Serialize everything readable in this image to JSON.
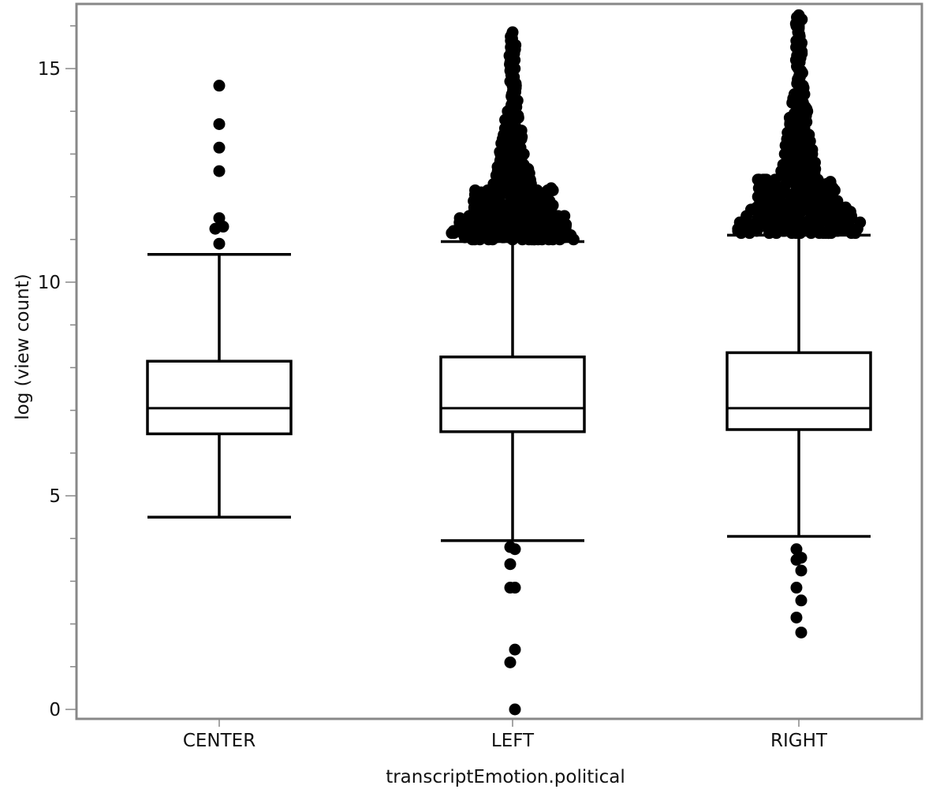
{
  "chart_data": {
    "type": "boxplot",
    "xlabel": "transcriptEmotion.political",
    "ylabel": "log (view count)",
    "ylim": [
      -0.2,
      16.3
    ],
    "yticks_labeled": [
      0,
      5,
      10,
      15
    ],
    "yticks_minor": [
      1,
      2,
      3,
      4,
      6,
      7,
      8,
      9,
      11,
      12,
      13,
      14,
      16
    ],
    "grid": false,
    "legend": "none",
    "categories": [
      "CENTER",
      "LEFT",
      "RIGHT"
    ],
    "boxes": [
      {
        "category": "CENTER",
        "whisker_low": 4.5,
        "q1": 6.45,
        "median": 7.05,
        "q3": 8.15,
        "whisker_high": 10.65,
        "outliers": [
          14.6,
          13.7,
          13.15,
          12.6,
          11.5,
          11.3,
          11.25,
          10.9
        ]
      },
      {
        "category": "LEFT",
        "whisker_low": 3.95,
        "q1": 6.5,
        "median": 7.05,
        "q3": 8.25,
        "whisker_high": 10.95,
        "outliers_low": [
          3.8,
          3.75,
          3.4,
          2.85,
          2.85,
          1.4,
          1.1,
          0.0
        ],
        "outliers_high_range": [
          11.0,
          15.85
        ],
        "outliers_high_samples": [
          11.0,
          11.1,
          11.2,
          11.3,
          11.4,
          11.5,
          11.6,
          11.8,
          12.0,
          12.2,
          12.4,
          12.6,
          12.8,
          13.0,
          13.2,
          13.4,
          13.6,
          13.8,
          14.0,
          14.2,
          14.4,
          14.6,
          15.0,
          15.35,
          15.85
        ]
      },
      {
        "category": "RIGHT",
        "whisker_low": 4.05,
        "q1": 6.55,
        "median": 7.05,
        "q3": 8.35,
        "whisker_high": 11.1,
        "outliers_low": [
          3.75,
          3.55,
          3.5,
          3.25,
          2.85,
          2.55,
          2.15,
          1.8
        ],
        "outliers_high_range": [
          11.15,
          16.25
        ],
        "outliers_high_samples": [
          11.15,
          11.25,
          11.35,
          11.45,
          11.6,
          11.8,
          12.0,
          12.2,
          12.4,
          12.6,
          12.8,
          13.0,
          13.2,
          13.4,
          13.6,
          13.8,
          14.0,
          14.2,
          14.4,
          14.6,
          14.8,
          15.0,
          15.2,
          15.4,
          15.6,
          15.8,
          16.0,
          16.25
        ]
      }
    ]
  }
}
